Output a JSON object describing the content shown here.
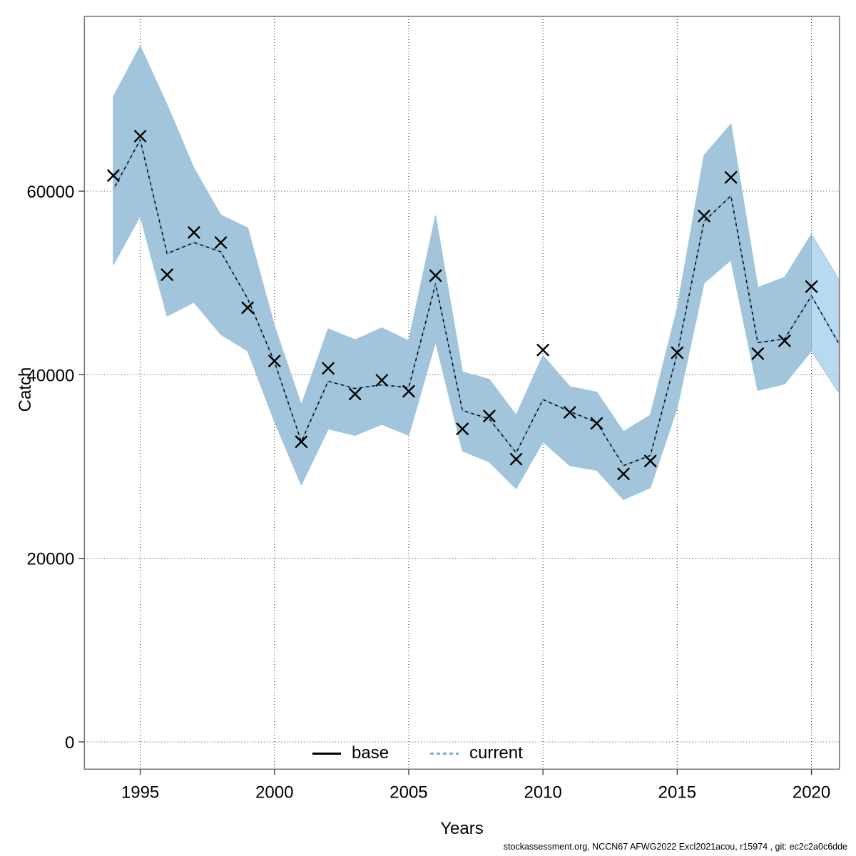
{
  "footer": {
    "text": "stockassessment.org, NCCN67  AFWG2022  Excl2021acou, r15974 , git: ec2c2a0c6dde"
  },
  "chart_data": {
    "type": "line",
    "title": "",
    "xlabel": "Years",
    "ylabel": "Catch",
    "grid": true,
    "legend_position": "bottom-center",
    "xlim": [
      1992.92,
      2021.04
    ],
    "ylim": [
      -2977,
      79042
    ],
    "x_ticks": [
      1995,
      2000,
      2005,
      2010,
      2015,
      2020
    ],
    "y_ticks": [
      0,
      20000,
      40000,
      60000
    ],
    "years": [
      1994,
      1995,
      1996,
      1997,
      1998,
      1999,
      2000,
      2001,
      2002,
      2003,
      2004,
      2005,
      2006,
      2007,
      2008,
      2009,
      2010,
      2011,
      2012,
      2013,
      2014,
      2015,
      2016,
      2017,
      2018,
      2019,
      2020,
      2021
    ],
    "series": [
      {
        "name": "base",
        "style": "solid",
        "color": "#000000",
        "width": 1.6,
        "values": [
          60200,
          65600,
          53200,
          54400,
          53400,
          48300,
          41400,
          32700,
          39300,
          38500,
          38900,
          38600,
          49900,
          36100,
          35200,
          31500,
          37300,
          36000,
          34800,
          30100,
          31200,
          42300,
          56700,
          59500,
          43500,
          43900,
          48600,
          43500
        ]
      },
      {
        "name": "current",
        "style": "dashed",
        "color": "#74b0d6",
        "width": 2,
        "values": [
          60200,
          65600,
          53200,
          54400,
          53400,
          48300,
          41400,
          32700,
          39300,
          38500,
          38900,
          38600,
          49900,
          36100,
          35200,
          31500,
          37300,
          36000,
          34800,
          30100,
          31200,
          42300,
          56700,
          59500,
          43500,
          43900,
          48600,
          43500
        ]
      }
    ],
    "observations": {
      "marker": "x",
      "color": "#000000",
      "years": [
        1994,
        1995,
        1996,
        1997,
        1998,
        1999,
        2000,
        2001,
        2002,
        2003,
        2004,
        2005,
        2006,
        2007,
        2008,
        2009,
        2010,
        2011,
        2012,
        2013,
        2014,
        2015,
        2016,
        2017,
        2018,
        2019,
        2020
      ],
      "values": [
        61700,
        66000,
        50900,
        55500,
        54400,
        47300,
        41500,
        32700,
        40700,
        37900,
        39400,
        38200,
        50800,
        34100,
        35500,
        30800,
        42700,
        35900,
        34700,
        29200,
        30600,
        42400,
        57300,
        61500,
        42300,
        43700,
        49600
      ]
    },
    "bands": [
      {
        "name": "confidence-band-base",
        "color": "#c8c8c8",
        "stroke": "#8f8f8f",
        "years": [
          1994,
          1995,
          1996,
          1997,
          1998,
          1999,
          2000,
          2001,
          2002,
          2003,
          2004,
          2005,
          2006,
          2007,
          2008,
          2009,
          2010,
          2011,
          2012,
          2013,
          2014,
          2015,
          2016,
          2017,
          2018,
          2019,
          2020
        ],
        "lower": [
          52000,
          57300,
          46400,
          47900,
          44400,
          42600,
          34900,
          28000,
          34100,
          33400,
          34600,
          33400,
          43600,
          31700,
          30500,
          27600,
          32700,
          30100,
          29600,
          26400,
          27700,
          36400,
          50000,
          52500,
          38300,
          39000,
          42600
        ],
        "upper": [
          70300,
          75800,
          69400,
          62500,
          57400,
          56000,
          45300,
          36700,
          45000,
          43800,
          45100,
          43700,
          57300,
          40300,
          39500,
          35600,
          42100,
          38700,
          38100,
          33800,
          35600,
          47200,
          63900,
          67300,
          49500,
          50600,
          55300
        ]
      },
      {
        "name": "confidence-band-current",
        "color": "rgba(140,195,230,0.62)",
        "stroke": "#9ec9e4",
        "years": [
          1994,
          1995,
          1996,
          1997,
          1998,
          1999,
          2000,
          2001,
          2002,
          2003,
          2004,
          2005,
          2006,
          2007,
          2008,
          2009,
          2010,
          2011,
          2012,
          2013,
          2014,
          2015,
          2016,
          2017,
          2018,
          2019,
          2020,
          2021
        ],
        "lower": [
          52000,
          57300,
          46400,
          47900,
          44400,
          42600,
          34900,
          28000,
          34100,
          33400,
          34600,
          33400,
          43600,
          31700,
          30500,
          27600,
          32700,
          30100,
          29600,
          26400,
          27700,
          36400,
          50000,
          52500,
          38300,
          39000,
          42600,
          38100
        ],
        "upper": [
          70300,
          75800,
          69400,
          62500,
          57400,
          56000,
          45300,
          36700,
          45000,
          43800,
          45100,
          43700,
          57300,
          40300,
          39500,
          35600,
          42100,
          38700,
          38100,
          33800,
          35600,
          47200,
          63900,
          67300,
          49500,
          50600,
          55300,
          50500
        ]
      }
    ]
  }
}
